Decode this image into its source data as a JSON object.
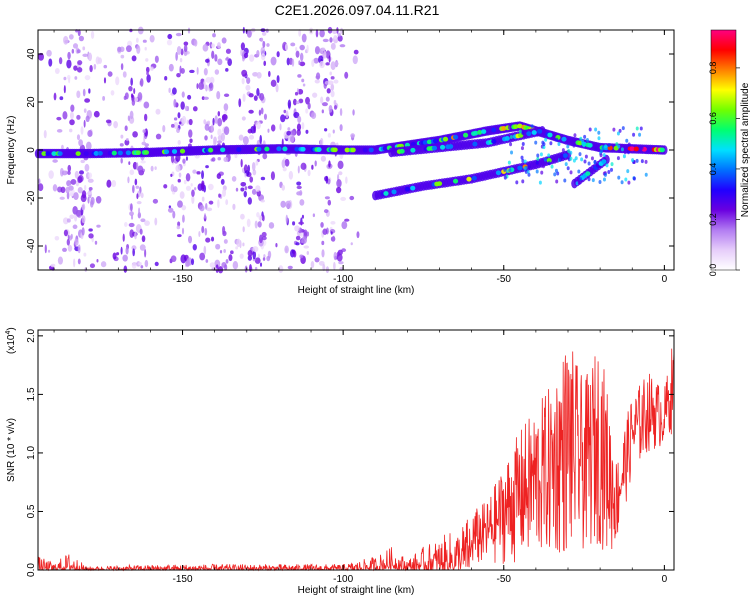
{
  "title": "C2E1.2026.097.04.11.R21",
  "chart_data": [
    {
      "type": "heatmap",
      "name": "spectrogram",
      "xlabel": "Height of straight line (km)",
      "ylabel": "Frequency (Hz)",
      "xlim": [
        -195,
        3
      ],
      "ylim": [
        -50,
        50
      ],
      "xticks": [
        -150,
        -100,
        -50,
        0
      ],
      "yticks": [
        -40,
        -20,
        0,
        20,
        40
      ],
      "colorbar": {
        "label": "Normalized spectral amplitude",
        "range": [
          0.0,
          0.95
        ],
        "ticks": [
          0.0,
          0.2,
          0.4,
          0.6,
          0.8
        ],
        "colors": [
          "#ffffff",
          "#e6cdfa",
          "#b27cf2",
          "#6a00e0",
          "#2000ff",
          "#0070ff",
          "#00e0ff",
          "#00ff70",
          "#70ff00",
          "#ffff00",
          "#ff8000",
          "#ff0000",
          "#ff0080"
        ]
      },
      "tracks": [
        {
          "name": "main-carrier",
          "points": [
            [
              -195,
              -1.5
            ],
            [
              -180,
              -1.5
            ],
            [
              -160,
              -1
            ],
            [
              -140,
              0
            ],
            [
              -120,
              0.5
            ],
            [
              -100,
              0
            ],
            [
              -90,
              0
            ],
            [
              -85,
              1
            ],
            [
              -70,
              4
            ],
            [
              -55,
              8
            ],
            [
              -45,
              10
            ],
            [
              -40,
              8
            ],
            [
              -30,
              4
            ],
            [
              -20,
              1
            ],
            [
              -10,
              0.5
            ],
            [
              0,
              0
            ]
          ]
        },
        {
          "name": "branch-lower",
          "points": [
            [
              -90,
              -19
            ],
            [
              -75,
              -15
            ],
            [
              -60,
              -12
            ],
            [
              -50,
              -9
            ],
            [
              -40,
              -6
            ],
            [
              -30,
              -2
            ]
          ]
        },
        {
          "name": "branch-upper",
          "points": [
            [
              -85,
              -1
            ],
            [
              -70,
              1
            ],
            [
              -55,
              3
            ],
            [
              -45,
              6
            ],
            [
              -38,
              8
            ]
          ]
        },
        {
          "name": "branch-descending",
          "points": [
            [
              -28,
              -14
            ],
            [
              -22,
              -8
            ],
            [
              -18,
              -4
            ]
          ]
        }
      ],
      "noise_region_x": [
        -195,
        -95
      ],
      "series_peak_x": [
        -63,
        -45,
        -12,
        -5
      ]
    },
    {
      "type": "line",
      "name": "snr",
      "xlabel": "Height of straight line (km)",
      "ylabel": "SNR (10 * v/v)",
      "scale_label": "(x10",
      "scale_exponent": "4",
      "xlim": [
        -195,
        3
      ],
      "ylim": [
        0,
        2.05
      ],
      "xticks": [
        -150,
        -100,
        -50,
        0
      ],
      "yticks": [
        0.0,
        0.5,
        1.0,
        1.5,
        2.0
      ],
      "color": "#ee2222",
      "envelope": {
        "x": [
          -195,
          -190,
          -185,
          -180,
          -170,
          -150,
          -120,
          -100,
          -95,
          -90,
          -85,
          -80,
          -75,
          -70,
          -65,
          -60,
          -55,
          -50,
          -45,
          -40,
          -35,
          -30,
          -25,
          -20,
          -17,
          -15,
          -10,
          -5,
          0,
          3
        ],
        "min": [
          0.0,
          0.0,
          0.0,
          0.0,
          0.0,
          0.0,
          0.0,
          0.0,
          0.0,
          0.0,
          0.01,
          0.0,
          0.0,
          0.0,
          0.0,
          0.02,
          0.03,
          0.05,
          0.05,
          0.08,
          0.1,
          0.1,
          0.15,
          0.2,
          0.1,
          0.2,
          0.8,
          1.0,
          1.05,
          1.2
        ],
        "max": [
          0.12,
          0.06,
          0.16,
          0.03,
          0.04,
          0.05,
          0.05,
          0.05,
          0.08,
          0.12,
          0.2,
          0.1,
          0.2,
          0.28,
          0.35,
          0.5,
          0.6,
          0.9,
          1.2,
          1.4,
          1.6,
          2.0,
          1.6,
          1.98,
          1.4,
          0.95,
          1.5,
          1.7,
          1.55,
          2.02
        ]
      }
    }
  ]
}
